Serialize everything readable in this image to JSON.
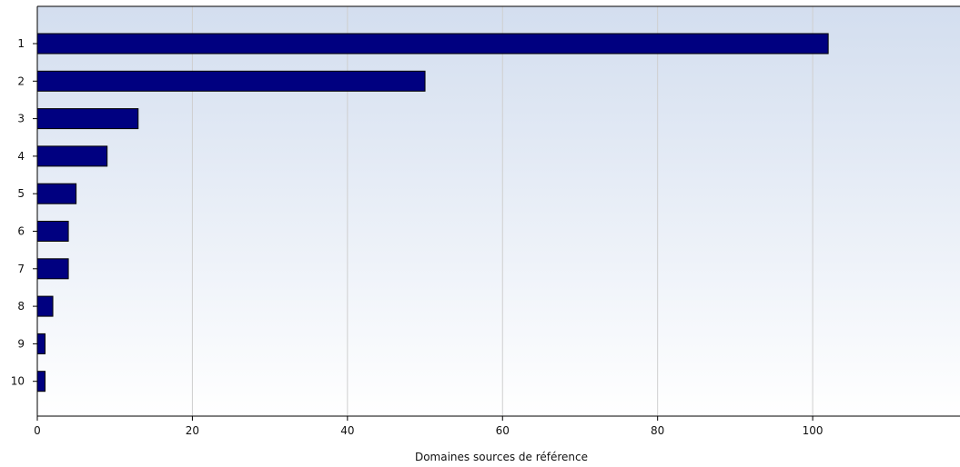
{
  "chart_data": {
    "type": "bar",
    "orientation": "horizontal",
    "categories": [
      "1",
      "2",
      "3",
      "4",
      "5",
      "6",
      "7",
      "8",
      "9",
      "10"
    ],
    "values": [
      102,
      50,
      13,
      9,
      5,
      4,
      4,
      2,
      1,
      1
    ],
    "xlabel": "Domaines sources de référence",
    "ylabel": "",
    "xlim": [
      0,
      119
    ],
    "xticks": [
      0,
      20,
      40,
      60,
      80,
      100
    ],
    "grid": "vertical",
    "legend": "none",
    "colors": {
      "bar_fill": "#000080",
      "bar_stroke": "#000000",
      "background_top": "#d3deef",
      "background_bottom": "#ffffff",
      "grid": "#cfcfcf",
      "axis": "#000000"
    }
  }
}
